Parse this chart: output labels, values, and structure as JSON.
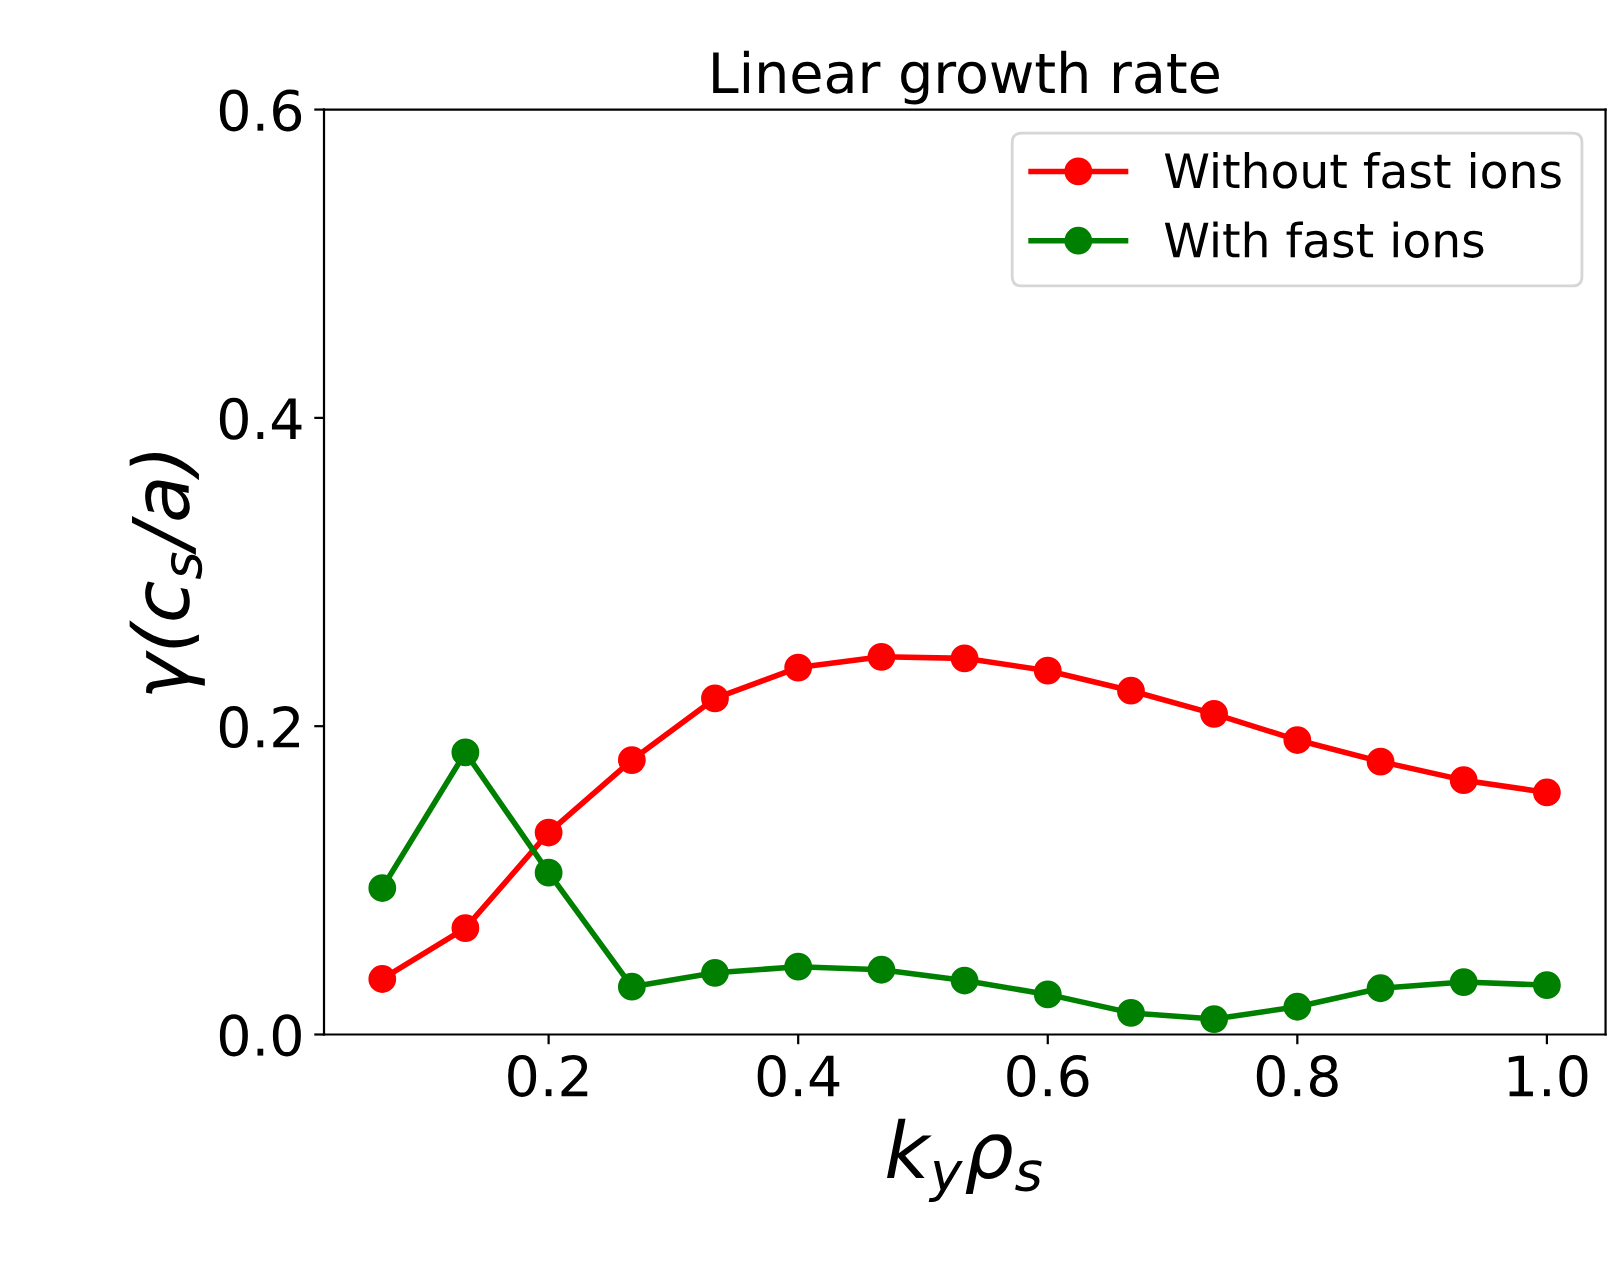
{
  "chart_data": {
    "type": "line",
    "title": "Linear growth rate",
    "xlabel": "k$_{y}$ρ$_{s}$",
    "ylabel": "γ(c$_{s}$/a)",
    "x": [
      0.0667,
      0.1333,
      0.2,
      0.2667,
      0.3333,
      0.4,
      0.4667,
      0.5333,
      0.6,
      0.6667,
      0.7333,
      0.8,
      0.8667,
      0.9333,
      1.0
    ],
    "series": [
      {
        "name": "Without fast ions",
        "color": "#ff0000",
        "values": [
          0.036,
          0.069,
          0.131,
          0.178,
          0.218,
          0.238,
          0.245,
          0.244,
          0.236,
          0.223,
          0.208,
          0.191,
          0.177,
          0.165,
          0.157
        ]
      },
      {
        "name": "With fast ions",
        "color": "#008000",
        "values": [
          0.095,
          0.183,
          0.105,
          0.031,
          0.04,
          0.044,
          0.042,
          0.035,
          0.026,
          0.014,
          0.01,
          0.018,
          0.03,
          0.034,
          0.032
        ]
      }
    ],
    "xlim": [
      0.02,
      1.047
    ],
    "xticks": [
      0.2,
      0.4,
      0.6,
      0.8,
      {
        "value": 1,
        "label": "1.0"
      }
    ],
    "ylim": [
      0,
      0.6
    ],
    "yticks": [
      {
        "value": 0,
        "label": "0.0"
      },
      0.2,
      0.4,
      0.6
    ],
    "grid": false,
    "legend": "top right",
    "marker": "circle",
    "line_style": "solid"
  }
}
